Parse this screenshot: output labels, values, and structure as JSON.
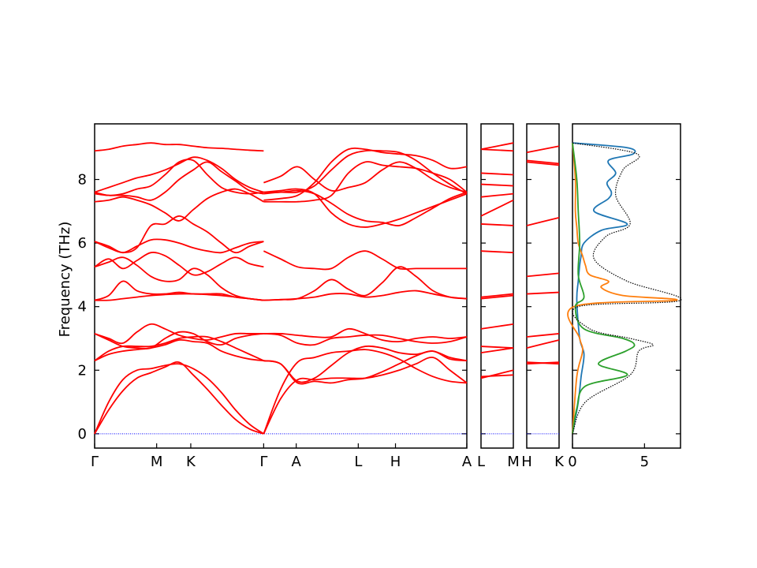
{
  "chart_data": [
    {
      "type": "line",
      "title": "",
      "ylabel": "Frequency (THz)",
      "ylim": [
        -0.45,
        9.75
      ],
      "yticks": [
        0,
        2,
        4,
        6,
        8
      ],
      "path_segments": [
        {
          "name": "main",
          "labels": [
            "Γ",
            "M",
            "K",
            "Γ",
            "A",
            "L",
            "H",
            "A"
          ]
        },
        {
          "name": "LM",
          "labels": [
            "L",
            "M"
          ]
        },
        {
          "name": "HK",
          "labels": [
            "H",
            "K"
          ]
        }
      ],
      "reference_line": {
        "y": 0,
        "color": "#0000ff",
        "style": "dotted"
      },
      "band_color": "#ff0000",
      "bands_main": {
        "segments": [
          {
            "x": [
              0,
              0.5,
              1,
              1.5,
              2,
              2.5,
              3,
              3.5,
              4,
              4.5,
              5,
              5.5,
              6
            ],
            "note": "Γ-M-K-Γ",
            "series": [
              {
                "values": [
                  0,
                  0.75,
                  1.35,
                  1.75,
                  1.92,
                  2.1,
                  2.25,
                  1.85,
                  1.4,
                  0.9,
                  0.45,
                  0.15,
                  0
                ]
              },
              {
                "values": [
                  0,
                  1.0,
                  1.7,
                  2.0,
                  2.05,
                  2.15,
                  2.2,
                  2.05,
                  1.75,
                  1.3,
                  0.75,
                  0.3,
                  0
                ]
              },
              {
                "values": [
                  2.3,
                  2.5,
                  2.6,
                  2.65,
                  2.7,
                  2.8,
                  2.95,
                  2.9,
                  2.85,
                  2.6,
                  2.45,
                  2.35,
                  2.3
                ]
              },
              {
                "values": [
                  2.3,
                  2.6,
                  2.75,
                  2.75,
                  2.75,
                  2.85,
                  3.0,
                  3.05,
                  3.05,
                  2.9,
                  2.7,
                  2.5,
                  2.3
                ]
              },
              {
                "values": [
                  3.15,
                  3.0,
                  2.85,
                  3.2,
                  3.45,
                  3.3,
                  3.1,
                  3.0,
                  2.95,
                  3.05,
                  3.15,
                  3.15,
                  3.15
                ]
              },
              {
                "values": [
                  3.15,
                  2.95,
                  2.75,
                  2.7,
                  2.7,
                  3.0,
                  3.2,
                  3.15,
                  2.9,
                  2.8,
                  3.0,
                  3.1,
                  3.15
                ]
              },
              {
                "values": [
                  4.2,
                  4.2,
                  4.25,
                  4.3,
                  4.35,
                  4.38,
                  4.4,
                  4.4,
                  4.38,
                  4.35,
                  4.3,
                  4.25,
                  4.2
                ]
              },
              {
                "values": [
                  4.2,
                  4.35,
                  4.8,
                  4.5,
                  4.4,
                  4.4,
                  4.45,
                  4.4,
                  4.4,
                  4.4,
                  4.3,
                  4.25,
                  4.2
                ]
              },
              {
                "values": [
                  5.25,
                  5.4,
                  5.55,
                  5.3,
                  4.95,
                  4.8,
                  4.85,
                  5.2,
                  5.0,
                  4.6,
                  4.35,
                  4.25,
                  4.2
                ]
              },
              {
                "values": [
                  5.25,
                  5.5,
                  5.2,
                  5.45,
                  5.7,
                  5.6,
                  5.3,
                  5.0,
                  5.1,
                  5.35,
                  5.55,
                  5.35,
                  5.25
                ]
              },
              {
                "values": [
                  6.05,
                  5.9,
                  5.7,
                  5.9,
                  6.1,
                  6.1,
                  6.0,
                  5.85,
                  5.75,
                  5.7,
                  5.85,
                  6.0,
                  6.05
                ]
              },
              {
                "values": [
                  6.05,
                  5.85,
                  5.7,
                  5.85,
                  6.55,
                  6.6,
                  6.85,
                  6.6,
                  6.35,
                  6.0,
                  5.7,
                  5.9,
                  6.05
                ]
              },
              {
                "values": [
                  7.3,
                  7.35,
                  7.45,
                  7.35,
                  7.2,
                  6.95,
                  6.7,
                  7.05,
                  7.4,
                  7.6,
                  7.7,
                  7.55,
                  7.3
                ]
              },
              {
                "values": [
                  7.55,
                  7.5,
                  7.5,
                  7.45,
                  7.35,
                  7.6,
                  8.0,
                  8.3,
                  8.55,
                  8.25,
                  7.95,
                  7.65,
                  7.55
                ]
              },
              {
                "values": [
                  7.6,
                  7.5,
                  7.55,
                  7.7,
                  7.8,
                  8.15,
                  8.55,
                  8.6,
                  8.15,
                  7.75,
                  7.6,
                  7.55,
                  7.6
                ]
              },
              {
                "values": [
                  7.6,
                  7.75,
                  7.9,
                  8.05,
                  8.15,
                  8.3,
                  8.5,
                  8.7,
                  8.6,
                  8.35,
                  8.0,
                  7.75,
                  7.6
                ]
              },
              {
                "values": [
                  8.9,
                  8.95,
                  9.05,
                  9.1,
                  9.15,
                  9.1,
                  9.1,
                  9.05,
                  9.0,
                  8.98,
                  8.95,
                  8.92,
                  8.9
                ]
              }
            ]
          },
          {
            "x": [
              6,
              6.5,
              7,
              7.5,
              8,
              8.5,
              9,
              9.5,
              10,
              10.5,
              11,
              11.5,
              12
            ],
            "note": "Γ-A-L-H-A",
            "series": [
              {
                "values": [
                  0,
                  1.4,
                  2.25,
                  2.4,
                  2.55,
                  2.6,
                  2.65,
                  2.55,
                  2.35,
                  2.05,
                  1.8,
                  1.65,
                  1.6
                ]
              },
              {
                "values": [
                  0,
                  1.1,
                  1.7,
                  1.7,
                  1.75,
                  1.75,
                  1.75,
                  1.85,
                  2.0,
                  2.2,
                  2.4,
                  2.0,
                  1.6
                ]
              },
              {
                "values": [
                  2.3,
                  2.2,
                  1.6,
                  1.65,
                  1.6,
                  1.7,
                  1.75,
                  1.95,
                  2.2,
                  2.45,
                  2.6,
                  2.35,
                  2.3
                ]
              },
              {
                "values": [
                  2.3,
                  2.2,
                  1.65,
                  1.75,
                  2.15,
                  2.55,
                  2.75,
                  2.7,
                  2.55,
                  2.5,
                  2.6,
                  2.4,
                  2.3
                ]
              },
              {
                "values": [
                  3.15,
                  3.15,
                  3.1,
                  3.05,
                  3.05,
                  3.3,
                  3.15,
                  2.95,
                  2.9,
                  3.0,
                  3.05,
                  3.0,
                  3.05
                ]
              },
              {
                "values": [
                  3.15,
                  3.1,
                  2.85,
                  2.8,
                  3.0,
                  3.05,
                  3.1,
                  3.1,
                  3.0,
                  2.9,
                  2.85,
                  2.9,
                  3.05
                ]
              },
              {
                "values": [
                  4.2,
                  4.22,
                  4.25,
                  4.3,
                  4.4,
                  4.4,
                  4.3,
                  4.35,
                  4.45,
                  4.5,
                  4.4,
                  4.3,
                  4.25
                ]
              },
              {
                "values": [
                  4.2,
                  4.22,
                  4.25,
                  4.5,
                  4.85,
                  4.55,
                  4.35,
                  4.75,
                  5.25,
                  4.95,
                  4.5,
                  4.3,
                  4.25
                ]
              },
              {
                "values": [
                  5.75,
                  5.5,
                  5.25,
                  5.2,
                  5.2,
                  5.55,
                  5.75,
                  5.5,
                  5.2,
                  5.2,
                  5.2,
                  5.2,
                  5.2
                ]
              },
              {
                "values": [
                  7.9,
                  8.1,
                  8.4,
                  8.0,
                  7.65,
                  7.75,
                  7.9,
                  8.3,
                  8.55,
                  8.35,
                  8.0,
                  7.75,
                  7.6
                ]
              },
              {
                "values": [
                  7.3,
                  7.3,
                  7.3,
                  7.35,
                  7.5,
                  8.2,
                  8.55,
                  8.45,
                  8.4,
                  8.35,
                  8.2,
                  8.0,
                  7.6
                ]
              },
              {
                "values": [
                  7.35,
                  7.4,
                  7.5,
                  7.9,
                  8.55,
                  8.95,
                  8.95,
                  8.85,
                  8.8,
                  8.75,
                  8.6,
                  8.35,
                  8.4
                ]
              },
              {
                "values": [
                  7.6,
                  7.65,
                  7.7,
                  7.55,
                  6.95,
                  6.6,
                  6.5,
                  6.6,
                  6.75,
                  6.95,
                  7.15,
                  7.35,
                  7.55
                ]
              },
              {
                "values": [
                  7.6,
                  7.6,
                  7.65,
                  7.55,
                  7.25,
                  6.9,
                  6.7,
                  6.65,
                  6.55,
                  6.8,
                  7.1,
                  7.4,
                  7.6
                ]
              },
              {
                "values": [
                  7.55,
                  7.6,
                  7.6,
                  7.8,
                  8.3,
                  8.75,
                  8.9,
                  8.9,
                  8.85,
                  8.6,
                  8.2,
                  7.85,
                  7.55
                ]
              }
            ]
          }
        ]
      },
      "bands_LM": {
        "x": [
          0,
          1
        ],
        "series": [
          {
            "values": [
              1.75,
              2.0
            ]
          },
          {
            "values": [
              1.8,
              1.85
            ]
          },
          {
            "values": [
              2.55,
              2.7
            ]
          },
          {
            "values": [
              2.75,
              2.7
            ]
          },
          {
            "values": [
              3.3,
              3.45
            ]
          },
          {
            "values": [
              4.25,
              4.35
            ]
          },
          {
            "values": [
              4.3,
              4.4
            ]
          },
          {
            "values": [
              5.75,
              5.7
            ]
          },
          {
            "values": [
              6.6,
              6.55
            ]
          },
          {
            "values": [
              6.85,
              7.35
            ]
          },
          {
            "values": [
              7.45,
              7.55
            ]
          },
          {
            "values": [
              7.85,
              7.8
            ]
          },
          {
            "values": [
              8.2,
              8.15
            ]
          },
          {
            "values": [
              8.95,
              8.9
            ]
          },
          {
            "values": [
              8.95,
              9.15
            ]
          }
        ]
      },
      "bands_HK": {
        "x": [
          0,
          1
        ],
        "series": [
          {
            "values": [
              2.2,
              2.25
            ]
          },
          {
            "values": [
              2.25,
              2.2
            ]
          },
          {
            "values": [
              2.7,
              2.95
            ]
          },
          {
            "values": [
              3.05,
              3.15
            ]
          },
          {
            "values": [
              4.4,
              4.45
            ]
          },
          {
            "values": [
              4.95,
              5.05
            ]
          },
          {
            "values": [
              6.55,
              6.8
            ]
          },
          {
            "values": [
              8.6,
              8.5
            ]
          },
          {
            "values": [
              8.55,
              8.45
            ]
          },
          {
            "values": [
              8.85,
              9.05
            ]
          }
        ]
      }
    },
    {
      "type": "line",
      "title": "",
      "xlabel": "",
      "xlim": [
        0,
        7.5
      ],
      "xticks": [
        0,
        5
      ],
      "ylim": [
        -0.45,
        9.75
      ],
      "note": "phonon DOS, orientation: frequency on vertical axis",
      "series": [
        {
          "color": "#1f77b4",
          "style": "solid",
          "y": [
            0,
            1.0,
            1.8,
            2.5,
            3.0,
            4.2,
            4.8,
            5.3,
            5.6,
            6.0,
            6.4,
            6.6,
            7.0,
            7.4,
            7.6,
            7.9,
            8.2,
            8.6,
            8.8,
            9.0,
            9.15
          ],
          "values": [
            0,
            0.4,
            0.6,
            0.8,
            0.5,
            0.3,
            0.4,
            0.5,
            0.6,
            0.8,
            2.0,
            3.8,
            1.5,
            2.5,
            2.7,
            2.4,
            3.0,
            2.5,
            4.2,
            3.8,
            0
          ]
        },
        {
          "color": "#ff7f0e",
          "style": "solid",
          "y": [
            0,
            1.8,
            2.6,
            3.0,
            4.0,
            4.2,
            4.35,
            4.6,
            4.8,
            5.0,
            5.3,
            5.6,
            6.0,
            6.5,
            7.0,
            8.0,
            9.15
          ],
          "values": [
            0,
            0.3,
            0.7,
            0.5,
            0.1,
            7.2,
            3.5,
            2.0,
            2.5,
            1.2,
            0.9,
            0.7,
            0.4,
            0.3,
            0.2,
            0.2,
            0
          ]
        },
        {
          "color": "#2ca02c",
          "style": "solid",
          "y": [
            0,
            0.8,
            1.5,
            1.85,
            2.2,
            2.6,
            2.8,
            3.0,
            3.3,
            4.0,
            4.3,
            5.0,
            6.0,
            7.0,
            8.0,
            9.15
          ],
          "values": [
            0,
            0.3,
            0.9,
            3.8,
            1.8,
            3.7,
            4.3,
            3.5,
            0.8,
            0.2,
            0.8,
            0.4,
            0.5,
            0.4,
            0.3,
            0
          ]
        },
        {
          "color": "#000000",
          "style": "dotted",
          "y": [
            0,
            1.0,
            1.85,
            2.6,
            2.8,
            3.0,
            3.3,
            4.0,
            4.2,
            4.8,
            5.5,
            6.2,
            6.6,
            7.5,
            8.3,
            8.8,
            9.15
          ],
          "values": [
            0,
            0.9,
            4.0,
            4.6,
            5.6,
            4.0,
            1.2,
            0.4,
            7.5,
            3.8,
            1.5,
            2.3,
            4.0,
            3.0,
            3.5,
            4.5,
            0
          ]
        }
      ]
    }
  ]
}
